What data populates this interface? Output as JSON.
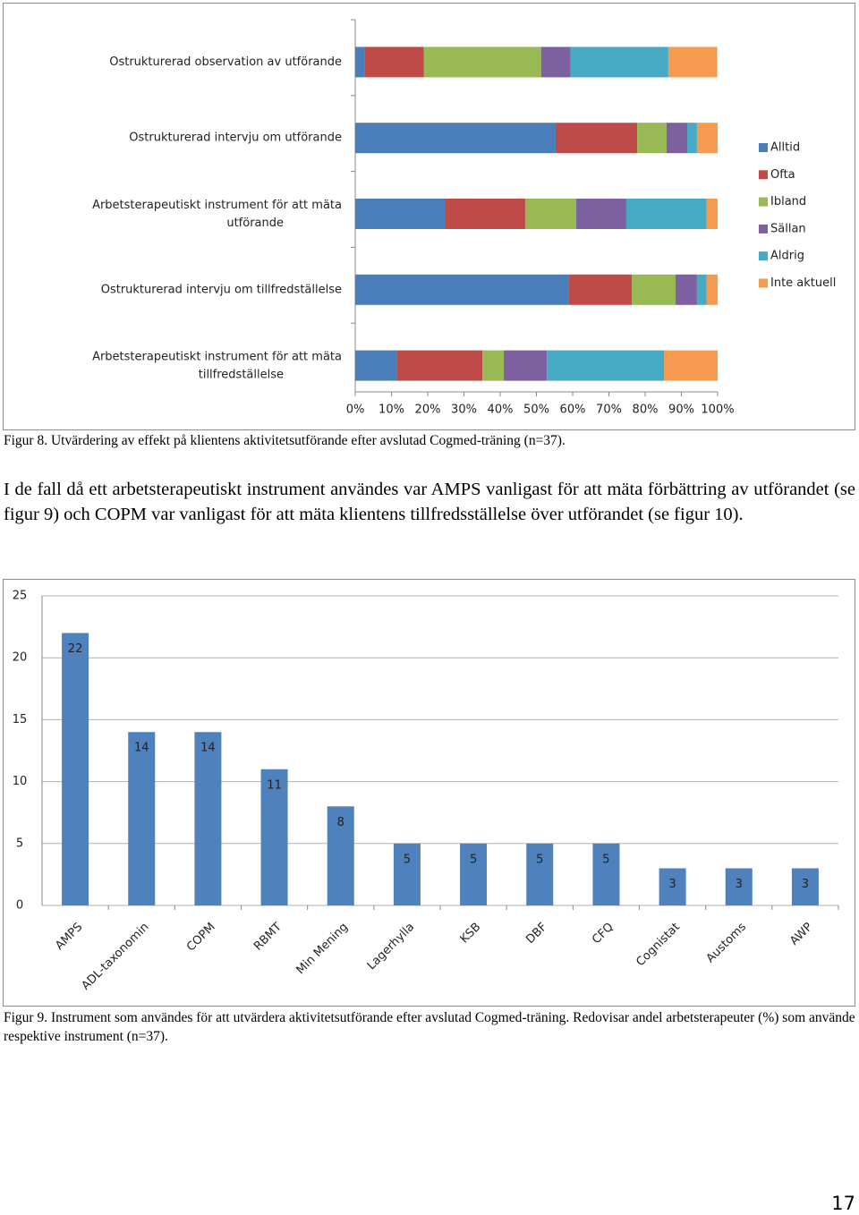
{
  "chart_data": [
    {
      "type": "stacked_hbar",
      "categories": [
        "Ostrukturerad observation av utförande",
        "Ostrukturerad intervju om utförande",
        "Arbetsterapeutiskt instrument för att mäta utförande",
        "Ostrukturerad intervju om tillfredställelse",
        "Arbetsterapeutiskt instrument för att mäta tillfredställelse"
      ],
      "series": [
        {
          "name": "Alltid",
          "color": "#4a7ebb",
          "values": [
            2.7,
            55.3,
            24.7,
            58.8,
            11.4
          ]
        },
        {
          "name": "Ofta",
          "color": "#be4b48",
          "values": [
            16.2,
            22.5,
            22.2,
            17.5,
            23.7
          ]
        },
        {
          "name": "Ibland",
          "color": "#98b954",
          "values": [
            32.4,
            8.1,
            14.1,
            12.1,
            5.9
          ]
        },
        {
          "name": "Sällan",
          "color": "#7d60a0",
          "values": [
            8.1,
            5.7,
            13.8,
            5.9,
            11.9
          ]
        },
        {
          "name": "Aldrig",
          "color": "#46aac5",
          "values": [
            27.0,
            2.7,
            22.2,
            2.7,
            32.3
          ]
        },
        {
          "name": "Inte aktuell",
          "color": "#f59a4e",
          "values": [
            13.5,
            5.7,
            3.0,
            3.0,
            14.8
          ]
        }
      ],
      "xlim": [
        0,
        100
      ],
      "xticks": [
        {
          "value": 0,
          "label": "0%"
        },
        {
          "value": 10,
          "label": "10%"
        },
        {
          "value": 20,
          "label": "20%"
        },
        {
          "value": 30,
          "label": "30%"
        },
        {
          "value": 40,
          "label": "40%"
        },
        {
          "value": 50,
          "label": "50%"
        },
        {
          "value": 60,
          "label": "60%"
        },
        {
          "value": 70,
          "label": "70%"
        },
        {
          "value": 80,
          "label": "80%"
        },
        {
          "value": 90,
          "label": "90%"
        },
        {
          "value": 100,
          "label": "100%"
        }
      ],
      "legend": "right"
    },
    {
      "type": "bar",
      "categories": [
        "AMPS",
        "ADL-taxonomin",
        "COPM",
        "RBMT",
        "Min Mening",
        "Lagerhylla",
        "KSB",
        "DBF",
        "CFQ",
        "Cognistat",
        "Austoms",
        "AWP"
      ],
      "values": [
        22,
        14,
        14,
        11,
        8,
        5,
        5,
        5,
        5,
        3,
        3,
        3
      ],
      "color": "#4f81bd",
      "ylim": [
        0,
        25
      ],
      "yticks": [
        0,
        5,
        10,
        15,
        20,
        25
      ],
      "grid": true
    }
  ],
  "figure8_caption": "Figur 8. Utvärdering av effekt på klientens aktivitetsutförande efter avslutad Cogmed-träning (n=37).",
  "paragraph": "I de fall då ett arbetsterapeutiskt instrument användes var AMPS vanligast för att mäta förbättring av utförandet (se figur 9) och COPM var vanligast för att mäta klientens tillfredsställelse över utförandet (se figur 10).",
  "figure9_caption": "Figur 9. Instrument som användes för att utvärdera aktivitetsutförande efter avslutad Cogmed-träning. Redovisar andel arbetsterapeuter (%) som använde respektive instrument (n=37).",
  "page_number": "17"
}
